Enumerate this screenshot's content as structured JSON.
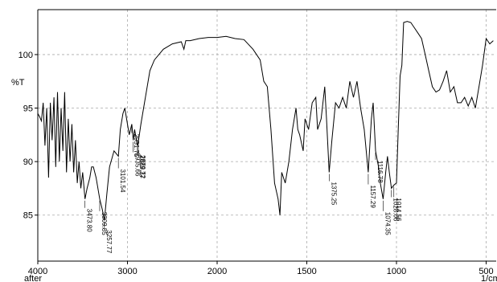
{
  "chart_data": {
    "type": "line",
    "y_axis_label": "%T",
    "x_axis_label_left": "after",
    "x_axis_label_right": "1/cm",
    "xlim": [
      4000,
      440
    ],
    "xticks": [
      4000,
      3000,
      2000,
      1500,
      1000,
      500
    ],
    "ylim": [
      80.7,
      104.2
    ],
    "yticks": [
      85,
      90,
      95,
      100
    ],
    "grid": true,
    "series": [
      {
        "color": "#000000",
        "x": [
          4000,
          3980,
          3960,
          3940,
          3920,
          3900,
          3880,
          3860,
          3840,
          3820,
          3800,
          3780,
          3760,
          3740,
          3720,
          3700,
          3680,
          3660,
          3640,
          3620,
          3600,
          3580,
          3560,
          3540,
          3520,
          3500,
          3473.8,
          3450,
          3420,
          3400,
          3380,
          3350,
          3309.85,
          3280,
          3257.77,
          3230,
          3200,
          3150,
          3101.54,
          3080,
          3050,
          3030,
          3000,
          2980,
          2951.75,
          2935.66,
          2920,
          2889.37,
          2879.72,
          2850,
          2800,
          2750,
          2700,
          2600,
          2500,
          2400,
          2370,
          2350,
          2300,
          2200,
          2100,
          2000,
          1950,
          1900,
          1850,
          1800,
          1760,
          1740,
          1720,
          1700,
          1680,
          1660,
          1650,
          1640,
          1620,
          1600,
          1580,
          1560,
          1550,
          1540,
          1520,
          1510,
          1490,
          1470,
          1450,
          1440,
          1420,
          1400,
          1390,
          1375.25,
          1360,
          1340,
          1320,
          1300,
          1280,
          1260,
          1240,
          1220,
          1200,
          1180,
          1157.29,
          1140,
          1130,
          1116.78,
          1100,
          1090,
          1074.35,
          1060,
          1050,
          1040,
          1028.06,
          1014.56,
          1000,
          990,
          980,
          970,
          960,
          940,
          920,
          900,
          880,
          860,
          840,
          820,
          800,
          780,
          760,
          740,
          720,
          700,
          680,
          660,
          640,
          620,
          600,
          580,
          560,
          540,
          520,
          500,
          480,
          460
        ],
        "values": [
          94.5,
          94.2,
          93.8,
          95.5,
          91.5,
          95.0,
          88.5,
          95.5,
          92,
          96,
          89.5,
          96.5,
          90,
          95,
          91,
          96.5,
          89,
          94,
          90,
          93.5,
          89,
          92,
          88,
          90,
          87.5,
          89,
          86.5,
          87.5,
          88.5,
          89.5,
          89.5,
          88.5,
          86.5,
          85.5,
          84.5,
          87,
          89.5,
          91,
          90.5,
          93,
          94.5,
          95,
          93.5,
          92.5,
          93.5,
          92,
          93,
          91.5,
          91.8,
          93.5,
          96,
          98.5,
          99.5,
          100.5,
          101,
          101.2,
          100.5,
          101.3,
          101.3,
          101.5,
          101.6,
          101.6,
          101.7,
          101.5,
          101.4,
          100.5,
          99.5,
          97.5,
          97,
          93,
          88,
          86.5,
          85,
          89,
          88,
          90,
          93,
          95,
          93,
          92.5,
          91,
          94,
          93,
          95.5,
          96,
          93,
          94,
          97,
          94,
          89,
          92,
          95.5,
          95,
          96,
          95,
          97.5,
          96,
          97.5,
          95,
          93,
          89,
          94,
          95.5,
          91,
          89.5,
          88,
          86.5,
          89,
          90.5,
          89,
          87.5,
          87.8,
          88,
          93,
          98,
          99,
          103,
          103.1,
          103,
          102.5,
          102,
          101.5,
          100,
          98.5,
          97,
          96.5,
          96.7,
          97.5,
          98.5,
          96.5,
          97,
          95.5,
          95.5,
          96,
          95.2,
          96,
          95,
          97,
          99,
          101.5,
          101,
          101.3
        ]
      }
    ],
    "peaks": [
      {
        "value": 3473.8,
        "label": "3473.80"
      },
      {
        "value": 3309.85,
        "label": "3309.85"
      },
      {
        "value": 3257.77,
        "label": "3257.77"
      },
      {
        "value": 3101.54,
        "label": "3101.54"
      },
      {
        "value": 2951.75,
        "label": "2951.75"
      },
      {
        "value": 2935.66,
        "label": "2935.66"
      },
      {
        "value": 2889.37,
        "label": "2889.37"
      },
      {
        "value": 2879.72,
        "label": "2879.72"
      },
      {
        "value": 1375.25,
        "label": "1375.25"
      },
      {
        "value": 1157.29,
        "label": "1157.29"
      },
      {
        "value": 1116.78,
        "label": "1116.78"
      },
      {
        "value": 1074.35,
        "label": "1074.35"
      },
      {
        "value": 1028.06,
        "label": "1028.06"
      },
      {
        "value": 1014.56,
        "label": "1014.56"
      }
    ]
  }
}
